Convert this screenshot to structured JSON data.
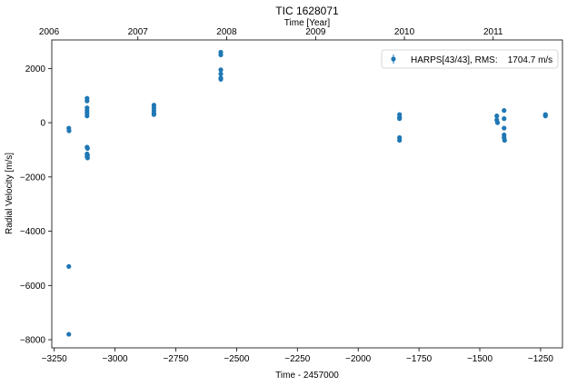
{
  "chart_data": {
    "type": "scatter",
    "title": "TIC 1628071",
    "xlabel": "Time - 2457000",
    "ylabel": "Radial Velocity [m/s]",
    "top_xlabel": "Time [Year]",
    "xlim": [
      -3260,
      -1160
    ],
    "ylim": [
      -8300,
      3050
    ],
    "xticks": [
      -3250,
      -3000,
      -2750,
      -2500,
      -2250,
      -2000,
      -1750,
      -1500,
      -1250
    ],
    "xtick_labels": [
      "−3250",
      "−3000",
      "−2750",
      "−2500",
      "−2250",
      "−2000",
      "−1750",
      "−1500",
      "−1250"
    ],
    "yticks": [
      -8000,
      -6000,
      -4000,
      -2000,
      0,
      2000
    ],
    "ytick_labels": [
      "−8000",
      "−6000",
      "−4000",
      "−2000",
      "0",
      "2000"
    ],
    "top_ticks": [
      {
        "label": "2006",
        "x": -3271
      },
      {
        "label": "2007",
        "x": -2906
      },
      {
        "label": "2008",
        "x": -2541
      },
      {
        "label": "2009",
        "x": -2175
      },
      {
        "label": "2010",
        "x": -1810
      },
      {
        "label": "2011",
        "x": -1445
      }
    ],
    "legend": {
      "position": "top-right",
      "label": "HARPS[43/43], RMS:    1704.7 m/s"
    },
    "marker_color": "#1f77b4",
    "series": [
      {
        "name": "HARPS[43/43], RMS:    1704.7 m/s",
        "x": [
          -3190,
          -3190,
          -3190,
          -3189,
          -3115,
          -3115,
          -3115,
          -3115,
          -3115,
          -3115,
          -3115,
          -3115,
          -3115,
          -3113,
          -3113,
          -3113,
          -2840,
          -2840,
          -2840,
          -2840,
          -2840,
          -2565,
          -2565,
          -2565,
          -2565,
          -2565,
          -2565,
          -1830,
          -1830,
          -1830,
          -1830,
          -1830,
          -1430,
          -1430,
          -1427,
          -1400,
          -1400,
          -1400,
          -1400,
          -1400,
          -1398,
          -1230,
          -1230
        ],
        "y": [
          -7800,
          -5300,
          -200,
          -300,
          900,
          800,
          550,
          450,
          350,
          250,
          -900,
          -1150,
          -1250,
          -1300,
          -1200,
          -950,
          650,
          550,
          450,
          350,
          300,
          2600,
          2500,
          1950,
          1800,
          1650,
          1600,
          300,
          200,
          150,
          -550,
          -650,
          250,
          100,
          0,
          450,
          150,
          -200,
          -450,
          -550,
          -650,
          300,
          250
        ]
      }
    ]
  }
}
